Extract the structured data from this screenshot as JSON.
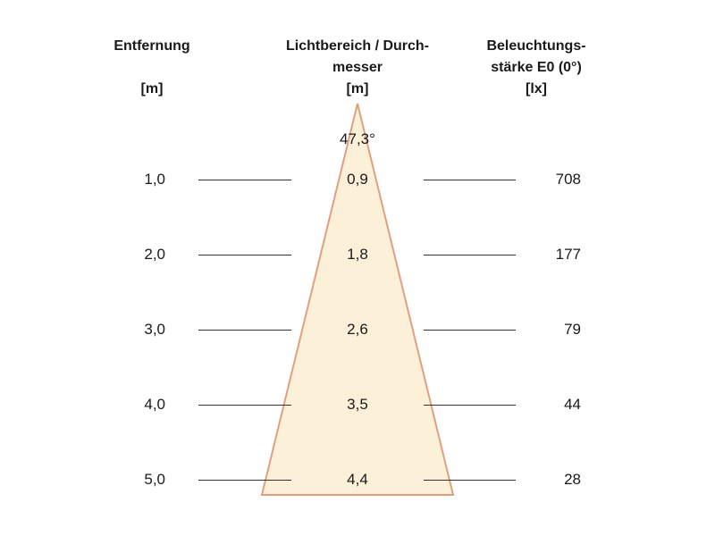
{
  "headers": {
    "distance": {
      "line1": "Entfernung",
      "line2": "",
      "unit": "[m]"
    },
    "beam": {
      "line1": "Lichtbereich / Durch-",
      "line2": "messer",
      "unit": "[m]"
    },
    "illuminance": {
      "line1": "Beleuchtungs-",
      "line2": "stärke E0 (0°)",
      "unit": "[lx]"
    }
  },
  "beam_angle": "47,3°",
  "rows": [
    {
      "distance": "1,0",
      "diameter": "0,9",
      "illuminance": "708"
    },
    {
      "distance": "2,0",
      "diameter": "1,8",
      "illuminance": "177"
    },
    {
      "distance": "3,0",
      "diameter": "2,6",
      "illuminance": "79"
    },
    {
      "distance": "4,0",
      "diameter": "3,5",
      "illuminance": "44"
    },
    {
      "distance": "5,0",
      "diameter": "4,4",
      "illuminance": "28"
    }
  ],
  "colors": {
    "cone_fill": "#fdf0d8",
    "cone_stroke": "#e0a080",
    "line": "#333333"
  }
}
